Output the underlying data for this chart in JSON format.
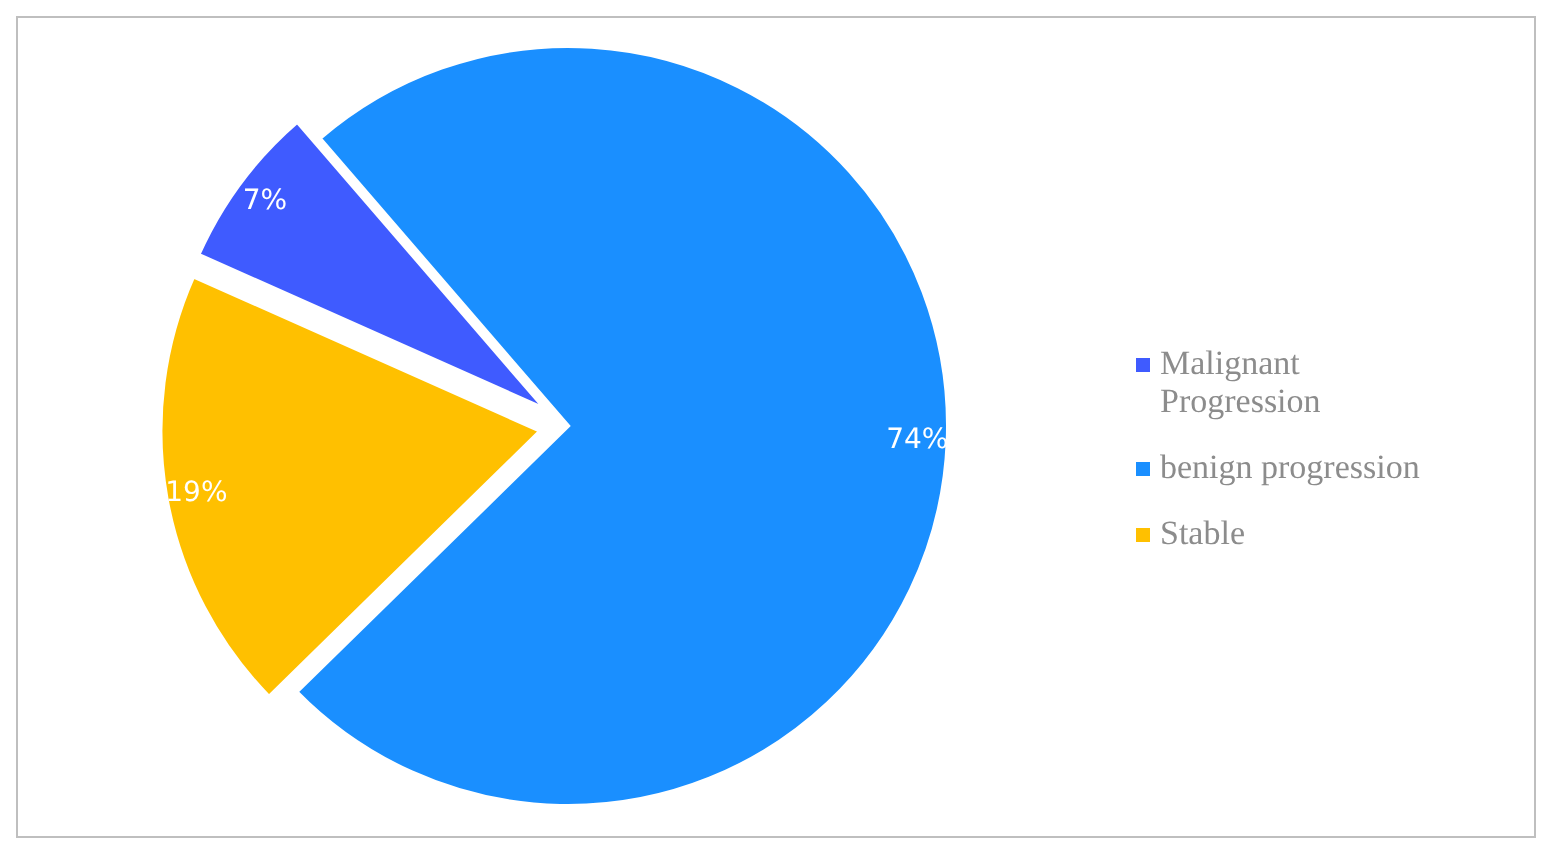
{
  "chart_data": {
    "type": "pie",
    "categories": [
      "Malignant Progression",
      "benign progression",
      "Stable"
    ],
    "values": [
      7,
      74,
      19
    ],
    "colors": [
      "#3f5bff",
      "#1a8fff",
      "#ffc000"
    ],
    "value_labels": [
      "7%",
      "74%",
      "19%"
    ],
    "legend": "right"
  }
}
